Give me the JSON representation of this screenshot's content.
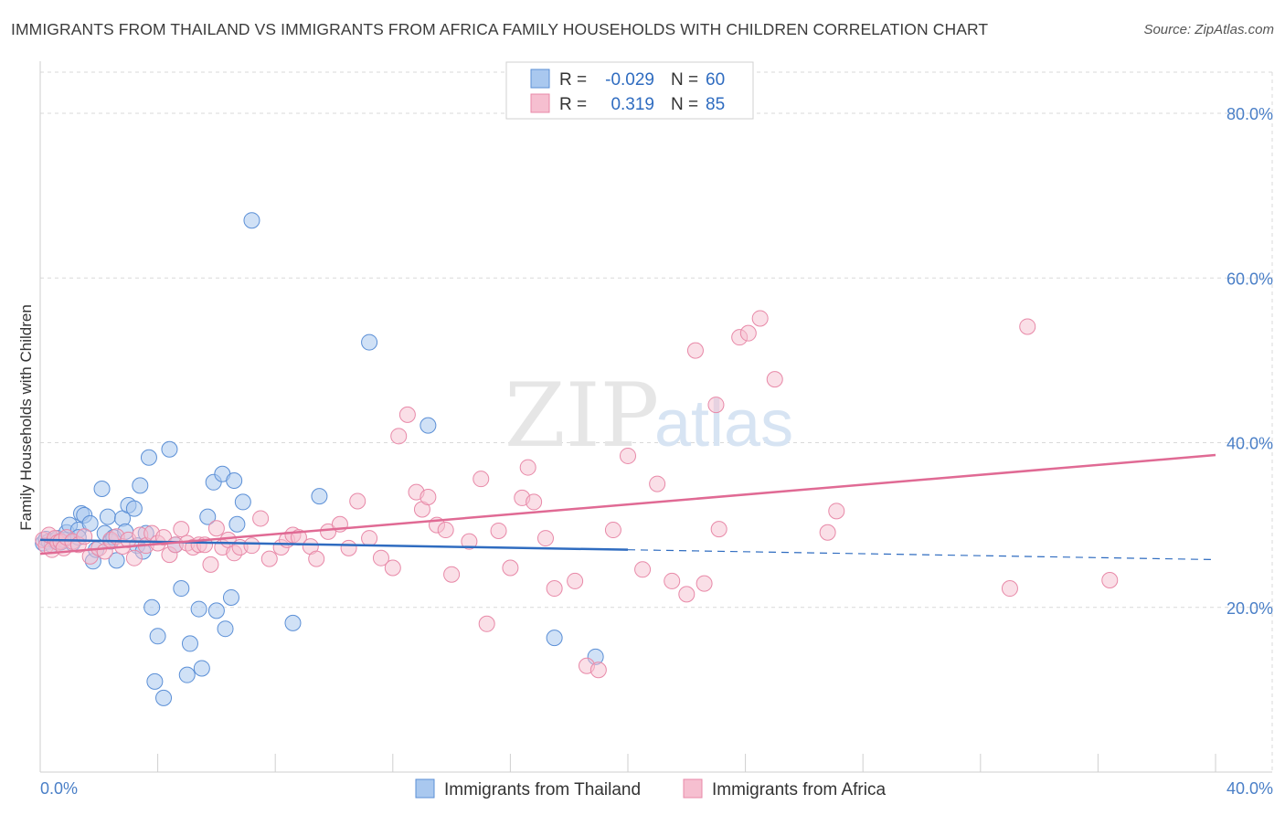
{
  "title": "IMMIGRANTS FROM THAILAND VS IMMIGRANTS FROM AFRICA FAMILY HOUSEHOLDS WITH CHILDREN CORRELATION CHART",
  "source": "Source: ZipAtlas.com",
  "watermark": {
    "zip": "ZIP",
    "atlas": "atlas"
  },
  "legend": {
    "r_label": "R =",
    "n_label": "N =",
    "rows": [
      {
        "r": "-0.029",
        "n": "60"
      },
      {
        "r": "0.319",
        "n": "85"
      }
    ]
  },
  "colors": {
    "thailand_fill": "#a9c8ef",
    "thailand_stroke": "#5b8fd6",
    "thailand_line": "#2f6cc0",
    "africa_fill": "#f6bfd0",
    "africa_stroke": "#e889a8",
    "africa_line": "#e06a94",
    "tick": "#4a7fc7",
    "grid": "#d9d9d9"
  },
  "chart_data": {
    "type": "scatter",
    "title": "IMMIGRANTS FROM THAILAND VS IMMIGRANTS FROM AFRICA FAMILY HOUSEHOLDS WITH CHILDREN CORRELATION CHART",
    "xlabel": "",
    "ylabel": "Family Households with Children",
    "xlim": [
      0,
      40
    ],
    "ylim": [
      0,
      85
    ],
    "x_ticks": [
      0,
      40
    ],
    "x_tick_labels": [
      "0.0%",
      "40.0%"
    ],
    "y_ticks": [
      20,
      40,
      60,
      80
    ],
    "y_tick_labels": [
      "20.0%",
      "40.0%",
      "60.0%",
      "80.0%"
    ],
    "grid": true,
    "legend_position": "top-center",
    "series": [
      {
        "name": "Immigrants from Thailand",
        "color": "#5b8fd6",
        "trend": {
          "x": [
            0,
            20,
            40
          ],
          "y": [
            28.2,
            27.0,
            25.8
          ],
          "solid_until": 20
        },
        "points": [
          [
            0.1,
            27.8
          ],
          [
            0.2,
            28.3
          ],
          [
            0.3,
            28.0
          ],
          [
            0.4,
            27.6
          ],
          [
            0.5,
            28.1
          ],
          [
            0.6,
            28.4
          ],
          [
            0.7,
            27.9
          ],
          [
            0.8,
            28.2
          ],
          [
            0.9,
            29.1
          ],
          [
            1.0,
            30.0
          ],
          [
            1.1,
            27.8
          ],
          [
            1.3,
            29.4
          ],
          [
            1.3,
            28.5
          ],
          [
            1.4,
            31.4
          ],
          [
            1.5,
            31.2
          ],
          [
            1.7,
            30.2
          ],
          [
            1.8,
            25.6
          ],
          [
            1.9,
            27.0
          ],
          [
            2.1,
            34.4
          ],
          [
            2.2,
            29.0
          ],
          [
            2.3,
            31.0
          ],
          [
            2.4,
            28.0
          ],
          [
            2.5,
            28.5
          ],
          [
            2.6,
            25.7
          ],
          [
            2.8,
            30.8
          ],
          [
            2.9,
            29.2
          ],
          [
            3.0,
            32.4
          ],
          [
            3.2,
            32.0
          ],
          [
            3.3,
            27.5
          ],
          [
            3.4,
            34.8
          ],
          [
            3.5,
            26.8
          ],
          [
            3.6,
            29.0
          ],
          [
            3.7,
            38.2
          ],
          [
            3.8,
            20.0
          ],
          [
            3.9,
            11.0
          ],
          [
            4.0,
            16.5
          ],
          [
            4.2,
            9.0
          ],
          [
            4.4,
            39.2
          ],
          [
            4.6,
            27.6
          ],
          [
            4.8,
            22.3
          ],
          [
            5.0,
            11.8
          ],
          [
            5.1,
            15.6
          ],
          [
            5.4,
            19.8
          ],
          [
            5.5,
            12.6
          ],
          [
            5.7,
            31.0
          ],
          [
            5.9,
            35.2
          ],
          [
            6.0,
            19.6
          ],
          [
            6.2,
            36.2
          ],
          [
            6.3,
            17.4
          ],
          [
            6.5,
            21.2
          ],
          [
            6.6,
            35.4
          ],
          [
            6.7,
            30.1
          ],
          [
            6.9,
            32.8
          ],
          [
            7.2,
            67.0
          ],
          [
            8.6,
            18.1
          ],
          [
            9.5,
            33.5
          ],
          [
            11.2,
            52.2
          ],
          [
            13.2,
            42.1
          ],
          [
            17.5,
            16.3
          ],
          [
            18.9,
            14.0
          ]
        ]
      },
      {
        "name": "Immigrants from Africa",
        "color": "#e889a8",
        "trend": {
          "x": [
            0,
            40
          ],
          "y": [
            26.5,
            38.5
          ]
        },
        "points": [
          [
            0.1,
            28.2
          ],
          [
            0.2,
            27.5
          ],
          [
            0.3,
            28.8
          ],
          [
            0.4,
            27.0
          ],
          [
            0.5,
            28.4
          ],
          [
            0.6,
            27.9
          ],
          [
            0.7,
            28.0
          ],
          [
            0.8,
            27.2
          ],
          [
            0.9,
            28.5
          ],
          [
            1.1,
            28.0
          ],
          [
            1.3,
            27.6
          ],
          [
            1.5,
            28.6
          ],
          [
            1.7,
            26.2
          ],
          [
            2.0,
            27.2
          ],
          [
            2.2,
            26.8
          ],
          [
            2.4,
            28.2
          ],
          [
            2.6,
            28.6
          ],
          [
            2.8,
            27.4
          ],
          [
            3.0,
            28.2
          ],
          [
            3.2,
            26.0
          ],
          [
            3.4,
            28.8
          ],
          [
            3.6,
            27.5
          ],
          [
            3.8,
            29.0
          ],
          [
            4.0,
            27.8
          ],
          [
            4.2,
            28.5
          ],
          [
            4.4,
            26.4
          ],
          [
            4.6,
            27.6
          ],
          [
            4.8,
            29.5
          ],
          [
            5.0,
            27.8
          ],
          [
            5.2,
            27.3
          ],
          [
            5.4,
            27.6
          ],
          [
            5.6,
            27.6
          ],
          [
            5.8,
            25.2
          ],
          [
            6.0,
            29.6
          ],
          [
            6.2,
            27.3
          ],
          [
            6.4,
            28.2
          ],
          [
            6.6,
            26.6
          ],
          [
            6.8,
            27.3
          ],
          [
            7.2,
            27.5
          ],
          [
            7.5,
            30.8
          ],
          [
            7.8,
            25.9
          ],
          [
            8.2,
            27.3
          ],
          [
            8.4,
            28.2
          ],
          [
            8.6,
            28.8
          ],
          [
            8.8,
            28.5
          ],
          [
            9.2,
            27.4
          ],
          [
            9.4,
            25.9
          ],
          [
            9.8,
            29.2
          ],
          [
            10.2,
            30.1
          ],
          [
            10.5,
            27.2
          ],
          [
            10.8,
            32.9
          ],
          [
            11.2,
            28.4
          ],
          [
            11.6,
            26.0
          ],
          [
            12.0,
            24.8
          ],
          [
            12.2,
            40.8
          ],
          [
            12.5,
            43.4
          ],
          [
            12.8,
            34.0
          ],
          [
            13.0,
            31.9
          ],
          [
            13.2,
            33.4
          ],
          [
            13.5,
            30.0
          ],
          [
            13.8,
            29.4
          ],
          [
            14.0,
            24.0
          ],
          [
            14.6,
            28.0
          ],
          [
            15.0,
            35.6
          ],
          [
            15.2,
            18.0
          ],
          [
            15.6,
            29.3
          ],
          [
            16.0,
            24.8
          ],
          [
            16.4,
            33.3
          ],
          [
            16.6,
            37.0
          ],
          [
            16.8,
            32.8
          ],
          [
            17.2,
            28.4
          ],
          [
            17.5,
            22.3
          ],
          [
            18.2,
            23.2
          ],
          [
            18.6,
            12.9
          ],
          [
            19.0,
            12.4
          ],
          [
            19.5,
            29.4
          ],
          [
            20.0,
            38.4
          ],
          [
            20.5,
            24.6
          ],
          [
            21.5,
            23.2
          ],
          [
            22.0,
            21.6
          ],
          [
            22.6,
            22.9
          ],
          [
            23.1,
            29.5
          ],
          [
            24.5,
            55.1
          ],
          [
            27.1,
            31.7
          ],
          [
            33.6,
            54.1
          ]
        ]
      }
    ],
    "extra_africa_points": [
      [
        22.3,
        51.2
      ],
      [
        23.0,
        44.6
      ],
      [
        23.8,
        52.8
      ],
      [
        24.1,
        53.3
      ],
      [
        25.0,
        47.7
      ],
      [
        26.8,
        29.1
      ],
      [
        33.0,
        22.3
      ],
      [
        36.4,
        23.3
      ],
      [
        21.0,
        35.0
      ]
    ]
  },
  "bottom_legend": [
    {
      "label": "Immigrants from Thailand"
    },
    {
      "label": "Immigrants from Africa"
    }
  ]
}
